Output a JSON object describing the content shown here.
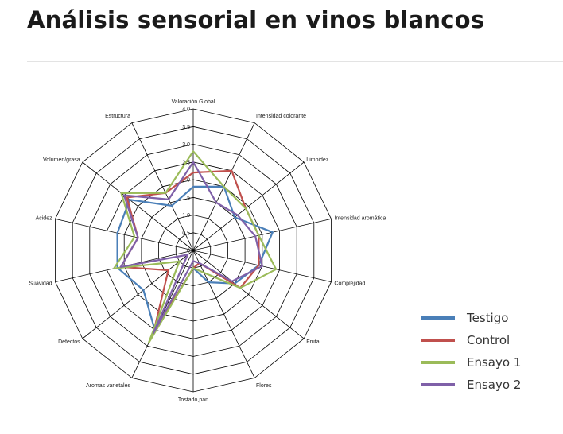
{
  "title": "Análisis sensorial en vinos blancos",
  "chart_data": {
    "type": "radar",
    "axes": [
      "Valoración Global",
      "Intensidad colorante",
      "Limpidez",
      "Intensidad aromática",
      "Complejidad",
      "Fruta",
      "Flores",
      "Tostado,pan",
      "Aromas varietales",
      "Defectos",
      "Suavidad",
      "Acidez",
      "Volumen/grasa",
      "Estructura"
    ],
    "ticks": [
      "0",
      "0.5",
      "1.0",
      "1.5",
      "2.0",
      "2.5",
      "3.0",
      "3.5",
      "4.0"
    ],
    "rmax": 4.0,
    "grid": true,
    "legend_position": "bottom-right",
    "series": [
      {
        "name": "Testigo",
        "color": "#4a7fb8",
        "values": [
          1.8,
          2.0,
          1.5,
          2.3,
          1.9,
          1.5,
          1.0,
          0.5,
          2.5,
          1.8,
          2.2,
          2.2,
          2.3,
          1.4
        ]
      },
      {
        "name": "Control",
        "color": "#c0504d",
        "values": [
          2.2,
          2.5,
          1.9,
          1.9,
          1.9,
          1.7,
          0.4,
          0.5,
          2.6,
          0.9,
          2.1,
          1.6,
          2.4,
          1.8
        ]
      },
      {
        "name": "Ensayo 1",
        "color": "#9bbb59",
        "values": [
          2.8,
          2.0,
          1.9,
          1.9,
          2.4,
          1.7,
          0.7,
          0.5,
          2.9,
          0.5,
          2.3,
          1.7,
          2.6,
          1.8
        ]
      },
      {
        "name": "Ensayo 2",
        "color": "#7f60a8",
        "values": [
          2.5,
          1.5,
          1.6,
          1.8,
          2.0,
          1.4,
          0.4,
          0.3,
          2.6,
          0.2,
          2.1,
          1.6,
          2.5,
          1.6
        ]
      }
    ]
  }
}
